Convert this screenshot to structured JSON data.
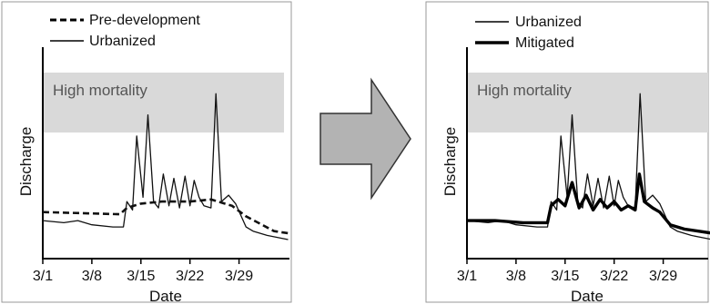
{
  "chart_data": [
    {
      "type": "line",
      "xlabel": "Date",
      "ylabel": "Discharge",
      "x_ticks": [
        "3/1",
        "3/8",
        "3/15",
        "3/22",
        "3/29"
      ],
      "band": {
        "label": "High mortality",
        "y_range": [
          0.55,
          0.8
        ]
      },
      "legend": {
        "position": "top-left",
        "entries": [
          "Pre-development",
          "Urbanized"
        ]
      },
      "series": [
        {
          "name": "Pre-development",
          "style": "dashed",
          "color": "#111111",
          "points": [
            [
              0,
              0.22
            ],
            [
              11,
              0.21
            ],
            [
              12,
              0.24
            ],
            [
              14,
              0.26
            ],
            [
              17,
              0.27
            ],
            [
              21,
              0.27
            ],
            [
              24,
              0.28
            ],
            [
              25,
              0.27
            ],
            [
              27,
              0.25
            ],
            [
              29,
              0.2
            ],
            [
              33,
              0.13
            ],
            [
              35,
              0.12
            ]
          ]
        },
        {
          "name": "Urbanized",
          "style": "thin",
          "color": "#111111",
          "points": [
            [
              0,
              0.18
            ],
            [
              3,
              0.17
            ],
            [
              5,
              0.18
            ],
            [
              7,
              0.16
            ],
            [
              10,
              0.15
            ],
            [
              11.5,
              0.15
            ],
            [
              12,
              0.27
            ],
            [
              12.8,
              0.23
            ],
            [
              13.4,
              0.58
            ],
            [
              14.3,
              0.29
            ],
            [
              15,
              0.68
            ],
            [
              15.8,
              0.27
            ],
            [
              16.5,
              0.24
            ],
            [
              17.2,
              0.4
            ],
            [
              18,
              0.25
            ],
            [
              18.7,
              0.38
            ],
            [
              19.5,
              0.24
            ],
            [
              20.3,
              0.39
            ],
            [
              21,
              0.25
            ],
            [
              21.6,
              0.37
            ],
            [
              22.3,
              0.29
            ],
            [
              23,
              0.25
            ],
            [
              24,
              0.24
            ],
            [
              24.7,
              0.78
            ],
            [
              25.5,
              0.27
            ],
            [
              26.5,
              0.3
            ],
            [
              27.5,
              0.26
            ],
            [
              29,
              0.15
            ],
            [
              30,
              0.13
            ],
            [
              32,
              0.11
            ],
            [
              35,
              0.09
            ]
          ]
        }
      ]
    },
    {
      "type": "line",
      "xlabel": "Date",
      "ylabel": "Discharge",
      "x_ticks": [
        "3/1",
        "3/8",
        "3/15",
        "3/22",
        "3/29"
      ],
      "band": {
        "label": "High mortality",
        "y_range": [
          0.55,
          0.8
        ]
      },
      "legend": {
        "position": "top-left",
        "entries": [
          "Urbanized",
          "Mitigated"
        ]
      },
      "series": [
        {
          "name": "Urbanized",
          "style": "thin",
          "color": "#111111",
          "points": [
            [
              0,
              0.18
            ],
            [
              3,
              0.17
            ],
            [
              5,
              0.18
            ],
            [
              7,
              0.16
            ],
            [
              10,
              0.15
            ],
            [
              11.5,
              0.15
            ],
            [
              12,
              0.27
            ],
            [
              12.8,
              0.23
            ],
            [
              13.4,
              0.58
            ],
            [
              14.3,
              0.29
            ],
            [
              15,
              0.68
            ],
            [
              15.8,
              0.27
            ],
            [
              16.5,
              0.24
            ],
            [
              17.2,
              0.4
            ],
            [
              18,
              0.25
            ],
            [
              18.7,
              0.38
            ],
            [
              19.5,
              0.24
            ],
            [
              20.3,
              0.39
            ],
            [
              21,
              0.25
            ],
            [
              21.6,
              0.37
            ],
            [
              22.3,
              0.29
            ],
            [
              23,
              0.25
            ],
            [
              24,
              0.24
            ],
            [
              24.7,
              0.78
            ],
            [
              25.5,
              0.27
            ],
            [
              26.5,
              0.3
            ],
            [
              27.5,
              0.26
            ],
            [
              29,
              0.15
            ],
            [
              30,
              0.13
            ],
            [
              32,
              0.11
            ],
            [
              35,
              0.09
            ]
          ]
        },
        {
          "name": "Mitigated",
          "style": "thick",
          "color": "#000000",
          "points": [
            [
              0,
              0.18
            ],
            [
              4,
              0.18
            ],
            [
              8,
              0.17
            ],
            [
              11.5,
              0.17
            ],
            [
              12,
              0.25
            ],
            [
              13,
              0.28
            ],
            [
              14,
              0.25
            ],
            [
              15,
              0.36
            ],
            [
              16,
              0.24
            ],
            [
              17,
              0.3
            ],
            [
              18,
              0.23
            ],
            [
              19,
              0.28
            ],
            [
              20,
              0.24
            ],
            [
              21,
              0.27
            ],
            [
              22,
              0.23
            ],
            [
              23,
              0.25
            ],
            [
              24,
              0.23
            ],
            [
              24.6,
              0.4
            ],
            [
              25.3,
              0.27
            ],
            [
              26.5,
              0.24
            ],
            [
              27.5,
              0.22
            ],
            [
              29,
              0.16
            ],
            [
              31,
              0.14
            ],
            [
              33,
              0.13
            ],
            [
              35,
              0.12
            ]
          ]
        }
      ]
    }
  ]
}
